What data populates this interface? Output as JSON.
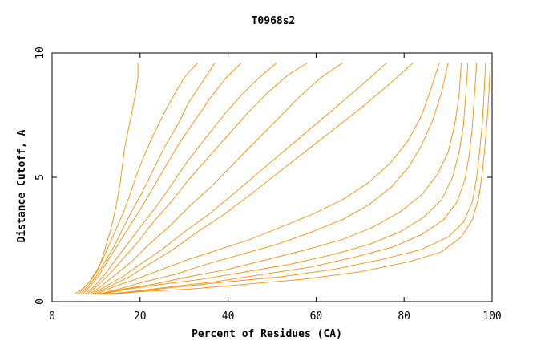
{
  "chart_data": {
    "type": "line",
    "title": "T0968s2",
    "xlabel": "Percent of Residues (CA)",
    "ylabel": "Distance Cutoff, A",
    "xlim": [
      0,
      100
    ],
    "ylim": [
      0,
      10
    ],
    "xticks": [
      0,
      20,
      40,
      60,
      80,
      100
    ],
    "yticks": [
      0,
      5,
      10
    ],
    "grid": false,
    "line_color": "#ff8c00",
    "series": [
      {
        "x": [
          5.0,
          6.0,
          7.5,
          9.0,
          10.5,
          11.5,
          12.5,
          13.5,
          14.5,
          15.5,
          16.5,
          18.0,
          19.0,
          19.5,
          19.5
        ],
        "y": [
          0.3,
          0.4,
          0.6,
          0.9,
          1.3,
          1.8,
          2.4,
          3.0,
          3.8,
          4.8,
          6.2,
          7.5,
          8.4,
          9.0,
          9.6
        ]
      },
      {
        "x": [
          6.0,
          7.0,
          8.5,
          10.0,
          11.5,
          13.0,
          14.5,
          16.0,
          17.5,
          19.0,
          21.0,
          23.0,
          25.5,
          28.0,
          30.0,
          33.0
        ],
        "y": [
          0.3,
          0.5,
          0.8,
          1.2,
          1.7,
          2.3,
          2.9,
          3.5,
          4.2,
          5.0,
          5.9,
          6.7,
          7.6,
          8.4,
          9.0,
          9.6
        ]
      },
      {
        "x": [
          6.5,
          8.0,
          10.0,
          12.0,
          14.0,
          16.0,
          18.0,
          20.5,
          23.0,
          25.5,
          28.5,
          31.0,
          34.0,
          37.0
        ],
        "y": [
          0.3,
          0.6,
          1.0,
          1.6,
          2.2,
          2.9,
          3.6,
          4.4,
          5.3,
          6.2,
          7.1,
          8.0,
          8.8,
          9.6
        ]
      },
      {
        "x": [
          7.0,
          8.5,
          10.5,
          12.5,
          15.0,
          17.5,
          20.0,
          23.0,
          26.0,
          29.0,
          32.5,
          36.0,
          39.5,
          43.0
        ],
        "y": [
          0.3,
          0.6,
          1.0,
          1.6,
          2.3,
          3.0,
          3.7,
          4.6,
          5.5,
          6.4,
          7.3,
          8.2,
          9.0,
          9.6
        ]
      },
      {
        "x": [
          7.5,
          9.5,
          12.0,
          14.5,
          17.5,
          20.5,
          24.0,
          27.5,
          31.0,
          35.0,
          39.0,
          43.0,
          47.0,
          51.0
        ],
        "y": [
          0.3,
          0.6,
          1.1,
          1.7,
          2.4,
          3.1,
          3.9,
          4.8,
          5.7,
          6.6,
          7.5,
          8.3,
          9.0,
          9.6
        ]
      },
      {
        "x": [
          8.0,
          10.0,
          13.0,
          16.0,
          19.5,
          23.0,
          27.0,
          31.0,
          35.5,
          40.0,
          44.5,
          49.0,
          53.5,
          58.0
        ],
        "y": [
          0.3,
          0.6,
          1.1,
          1.7,
          2.4,
          3.2,
          4.0,
          4.9,
          5.8,
          6.7,
          7.6,
          8.4,
          9.1,
          9.6
        ]
      },
      {
        "x": [
          8.5,
          11.0,
          14.5,
          18.0,
          22.0,
          26.5,
          31.0,
          36.0,
          41.0,
          46.0,
          51.0,
          56.0,
          61.0,
          66.0
        ],
        "y": [
          0.3,
          0.6,
          1.1,
          1.6,
          2.3,
          3.0,
          3.8,
          4.6,
          5.5,
          6.4,
          7.3,
          8.2,
          9.0,
          9.6
        ]
      },
      {
        "x": [
          9.0,
          12.0,
          16.0,
          20.0,
          25.0,
          30.0,
          35.5,
          41.0,
          47.0,
          53.0,
          59.0,
          65.0,
          71.0,
          76.0
        ],
        "y": [
          0.3,
          0.6,
          1.0,
          1.5,
          2.1,
          2.8,
          3.5,
          4.3,
          5.2,
          6.1,
          7.0,
          7.9,
          8.8,
          9.6
        ]
      },
      {
        "x": [
          9.5,
          13.0,
          17.5,
          22.0,
          27.5,
          33.0,
          39.0,
          45.0,
          51.5,
          58.0,
          64.5,
          71.0,
          77.0,
          82.0
        ],
        "y": [
          0.3,
          0.6,
          1.0,
          1.5,
          2.1,
          2.8,
          3.5,
          4.3,
          5.2,
          6.1,
          7.0,
          7.9,
          8.8,
          9.6
        ]
      },
      {
        "x": [
          10.0,
          14.0,
          19.0,
          25.0,
          31.0,
          38.0,
          45.0,
          52.0,
          59.0,
          66.0,
          72.0,
          77.0,
          81.0,
          84.0,
          86.0,
          88.0
        ],
        "y": [
          0.3,
          0.6,
          0.9,
          1.3,
          1.7,
          2.1,
          2.5,
          3.0,
          3.5,
          4.1,
          4.8,
          5.6,
          6.5,
          7.5,
          8.5,
          9.6
        ]
      },
      {
        "x": [
          10.5,
          15.0,
          21.0,
          28.0,
          35.0,
          43.0,
          51.0,
          59.0,
          66.0,
          72.0,
          77.0,
          81.0,
          84.0,
          86.5,
          88.5,
          90.0
        ],
        "y": [
          0.3,
          0.5,
          0.8,
          1.1,
          1.5,
          1.9,
          2.3,
          2.8,
          3.3,
          3.9,
          4.6,
          5.4,
          6.3,
          7.3,
          8.4,
          9.6
        ]
      },
      {
        "x": [
          11.0,
          16.0,
          23.0,
          31.0,
          40.0,
          49.0,
          58.0,
          66.0,
          73.0,
          79.0,
          84.0,
          87.5,
          90.0,
          91.5,
          92.5,
          93.0
        ],
        "y": [
          0.3,
          0.5,
          0.7,
          1.0,
          1.3,
          1.7,
          2.1,
          2.5,
          3.0,
          3.6,
          4.3,
          5.1,
          6.0,
          7.1,
          8.3,
          9.6
        ]
      },
      {
        "x": [
          11.5,
          17.0,
          25.0,
          34.0,
          44.0,
          54.0,
          64.0,
          72.0,
          79.0,
          84.5,
          88.5,
          91.0,
          92.5,
          93.5,
          94.0,
          94.5
        ],
        "y": [
          0.3,
          0.5,
          0.7,
          0.9,
          1.2,
          1.5,
          1.9,
          2.3,
          2.8,
          3.4,
          4.1,
          5.0,
          6.0,
          7.1,
          8.3,
          9.6
        ]
      },
      {
        "x": [
          12.0,
          18.0,
          27.0,
          37.0,
          48.0,
          59.0,
          69.0,
          77.5,
          84.0,
          89.0,
          92.0,
          93.8,
          94.8,
          95.5,
          96.0,
          96.5
        ],
        "y": [
          0.3,
          0.4,
          0.6,
          0.8,
          1.1,
          1.4,
          1.8,
          2.2,
          2.7,
          3.3,
          4.0,
          4.9,
          5.9,
          7.0,
          8.3,
          9.6
        ]
      },
      {
        "x": [
          12.5,
          19.0,
          29.0,
          40.0,
          52.0,
          64.0,
          75.0,
          84.0,
          90.0,
          93.5,
          95.5,
          96.5,
          97.2,
          97.8,
          98.2,
          98.5
        ],
        "y": [
          0.3,
          0.4,
          0.6,
          0.8,
          1.0,
          1.3,
          1.7,
          2.1,
          2.6,
          3.2,
          4.0,
          5.0,
          6.1,
          7.2,
          8.4,
          9.6
        ]
      },
      {
        "x": [
          13.0,
          20.0,
          31.0,
          44.0,
          57.0,
          70.0,
          81.0,
          88.5,
          93.0,
          95.5,
          97.0,
          97.8,
          98.4,
          98.9,
          99.3,
          99.6
        ],
        "y": [
          0.3,
          0.4,
          0.5,
          0.7,
          0.9,
          1.2,
          1.6,
          2.0,
          2.6,
          3.3,
          4.2,
          5.2,
          6.3,
          7.4,
          8.5,
          9.6
        ]
      }
    ]
  }
}
